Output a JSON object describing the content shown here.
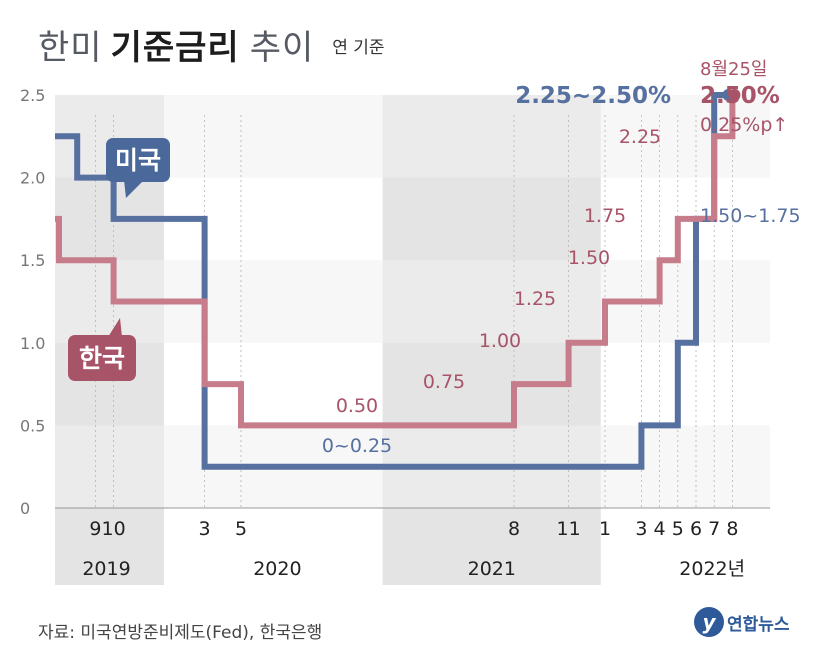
{
  "title": {
    "part1": "한미",
    "bold": "기준금리",
    "part2": "추이",
    "unit": "연 기준"
  },
  "source": "자료: 미국연방준비제도(Fed), 한국은행",
  "logo": {
    "mark": "y",
    "text": "연합뉴스"
  },
  "colors": {
    "us": "#56709f",
    "korea": "#c77c8b",
    "us_label_bg": "#4a6899",
    "korea_label_bg": "#a85468",
    "band": "#f0f0f0",
    "year_band": "#e4e4e4"
  },
  "chart_data": {
    "type": "line",
    "step": true,
    "ylim": [
      0,
      2.5
    ],
    "yticks": [
      0,
      0.5,
      1.0,
      1.5,
      2.0,
      2.5
    ],
    "ytick_labels": [
      "0",
      "0.5",
      "1.0",
      "1.5",
      "2.0",
      "2.5"
    ],
    "grid": "horizontal bands",
    "month_ticks": [
      {
        "label": "9",
        "date": "2019-09"
      },
      {
        "label": "10",
        "date": "2019-10"
      },
      {
        "label": "3",
        "date": "2020-03"
      },
      {
        "label": "5",
        "date": "2020-05"
      },
      {
        "label": "8",
        "date": "2021-08"
      },
      {
        "label": "11",
        "date": "2021-11"
      },
      {
        "label": "1",
        "date": "2022-01"
      },
      {
        "label": "3",
        "date": "2022-03"
      },
      {
        "label": "4",
        "date": "2022-04"
      },
      {
        "label": "5",
        "date": "2022-05"
      },
      {
        "label": "6",
        "date": "2022-06"
      },
      {
        "label": "7",
        "date": "2022-07"
      },
      {
        "label": "8",
        "date": "2022-08"
      }
    ],
    "years": [
      {
        "label": "2019",
        "start": "2019-01",
        "end": "2019-12"
      },
      {
        "label": "2020",
        "start": "2020-01",
        "end": "2020-12"
      },
      {
        "label": "2021",
        "start": "2021-01",
        "end": "2021-12"
      },
      {
        "label": "2022년",
        "start": "2022-01",
        "end": "2022-12"
      }
    ],
    "series": [
      {
        "name": "미국",
        "values": [
          {
            "date": "2019-07",
            "rate": 2.25
          },
          {
            "date": "2019-08",
            "rate": 2.0
          },
          {
            "date": "2019-10",
            "rate": 1.75
          },
          {
            "date": "2020-03",
            "rate": 0.25
          },
          {
            "date": "2022-03",
            "rate": 0.5
          },
          {
            "date": "2022-05",
            "rate": 1.0
          },
          {
            "date": "2022-06",
            "rate": 1.75
          },
          {
            "date": "2022-07",
            "rate": 2.5
          }
        ],
        "end_date": "2022-08",
        "labels": [
          "0~0.25",
          "1.50~1.75",
          "2.25~2.50%"
        ]
      },
      {
        "name": "한국",
        "values": [
          {
            "date": "2019-01",
            "rate": 1.75
          },
          {
            "date": "2019-07",
            "rate": 1.5
          },
          {
            "date": "2019-10",
            "rate": 1.25
          },
          {
            "date": "2020-03",
            "rate": 0.75
          },
          {
            "date": "2020-05",
            "rate": 0.5
          },
          {
            "date": "2021-08",
            "rate": 0.75
          },
          {
            "date": "2021-11",
            "rate": 1.0
          },
          {
            "date": "2022-01",
            "rate": 1.25
          },
          {
            "date": "2022-04",
            "rate": 1.5
          },
          {
            "date": "2022-05",
            "rate": 1.75
          },
          {
            "date": "2022-07",
            "rate": 2.25
          },
          {
            "date": "2022-08",
            "rate": 2.5
          }
        ],
        "end_date": "2022-08",
        "labels": [
          "0.50",
          "0.75",
          "1.00",
          "1.25",
          "1.50",
          "1.75",
          "2.25",
          "2.50%"
        ]
      }
    ],
    "annotations": {
      "us_latest": "2.25~2.50%",
      "korea_date": "8월25일",
      "korea_latest": "2.50%",
      "korea_change": "0.25%p↑"
    }
  }
}
